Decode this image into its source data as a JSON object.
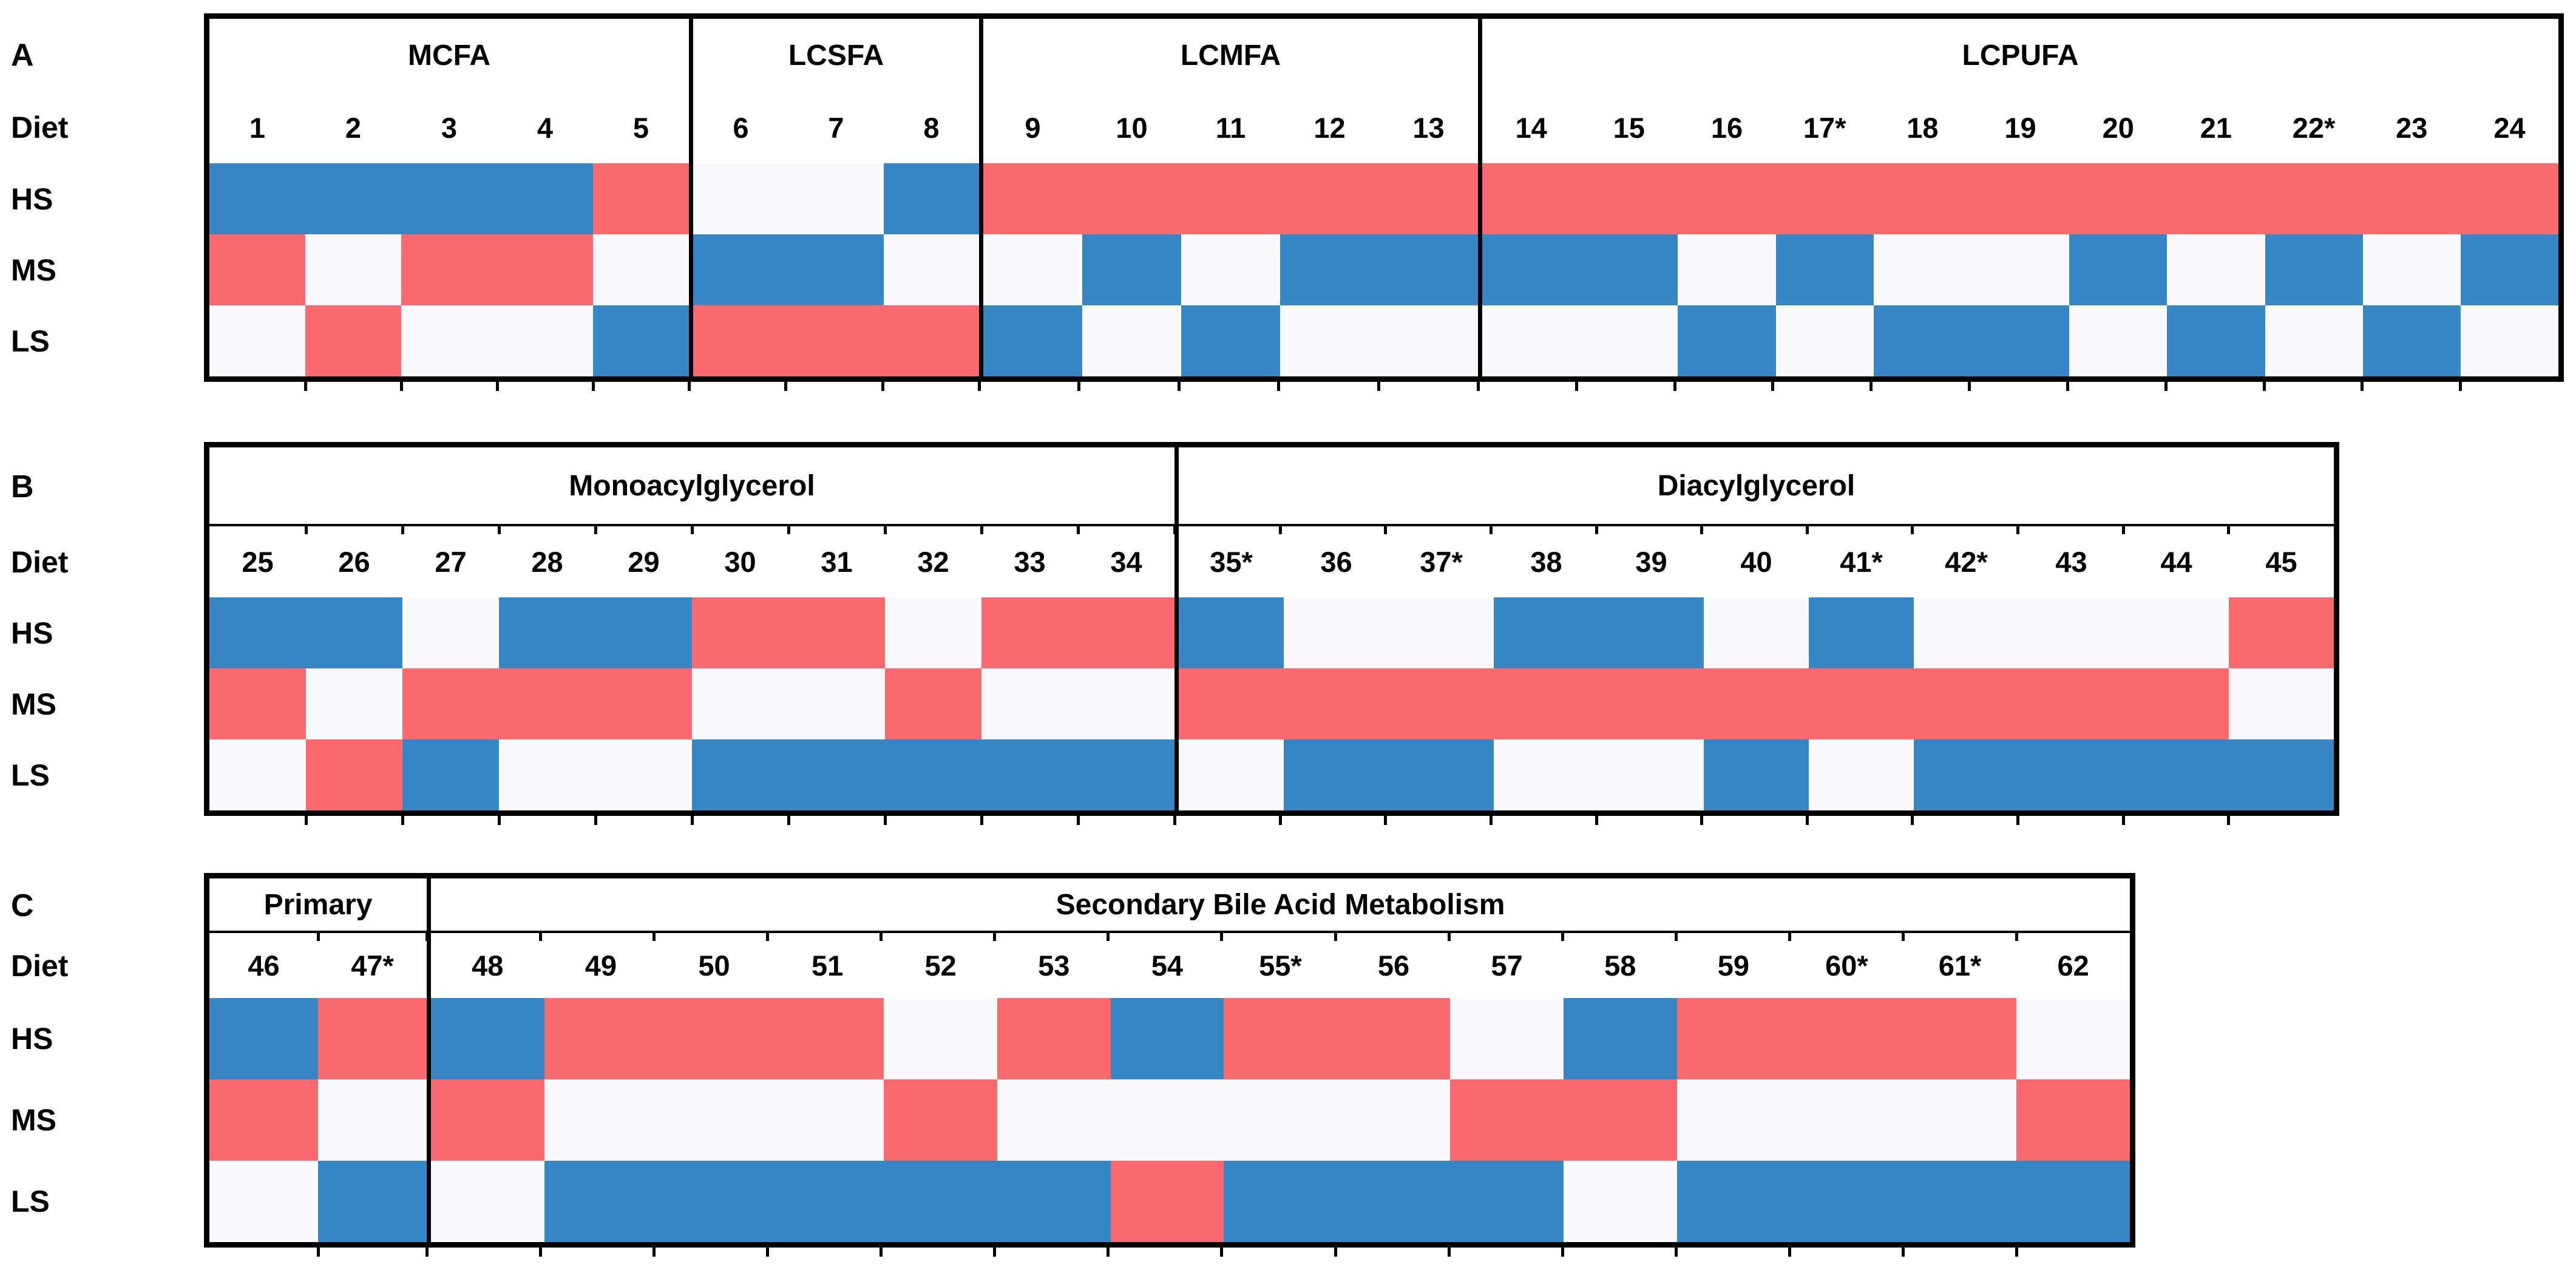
{
  "chart_data": {
    "type": "heatmap",
    "cell_colors": {
      "blue": "#3787C6",
      "red": "#FA696E",
      "white": "#FAF9FD"
    },
    "row_labels": {
      "diet": "Diet",
      "rows": [
        "HS",
        "MS",
        "LS"
      ]
    },
    "panels": [
      {
        "letter": "A",
        "groups": [
          {
            "name": "MCFA",
            "diets": [
              "1",
              "2",
              "3",
              "4",
              "5"
            ],
            "values": {
              "HS": [
                "blue",
                "blue",
                "blue",
                "blue",
                "red"
              ],
              "MS": [
                "red",
                "white",
                "red",
                "red",
                "white"
              ],
              "LS": [
                "white",
                "red",
                "white",
                "white",
                "blue"
              ]
            }
          },
          {
            "name": "LCSFA",
            "diets": [
              "6",
              "7",
              "8"
            ],
            "values": {
              "HS": [
                "white",
                "white",
                "blue"
              ],
              "MS": [
                "blue",
                "blue",
                "white"
              ],
              "LS": [
                "red",
                "red",
                "red"
              ]
            }
          },
          {
            "name": "LCMFA",
            "diets": [
              "9",
              "10",
              "11",
              "12",
              "13"
            ],
            "values": {
              "HS": [
                "red",
                "red",
                "red",
                "red",
                "red"
              ],
              "MS": [
                "white",
                "blue",
                "white",
                "blue",
                "blue"
              ],
              "LS": [
                "blue",
                "white",
                "blue",
                "white",
                "white"
              ]
            }
          },
          {
            "name": "LCPUFA",
            "diets": [
              "14",
              "15",
              "16",
              "17*",
              "18",
              "19",
              "20",
              "21",
              "22*",
              "23",
              "24"
            ],
            "values": {
              "HS": [
                "red",
                "red",
                "red",
                "red",
                "red",
                "red",
                "red",
                "red",
                "red",
                "red",
                "red"
              ],
              "MS": [
                "blue",
                "blue",
                "white",
                "blue",
                "white",
                "white",
                "blue",
                "white",
                "blue",
                "white",
                "blue"
              ],
              "LS": [
                "white",
                "white",
                "blue",
                "white",
                "blue",
                "blue",
                "white",
                "blue",
                "white",
                "blue",
                "white"
              ]
            }
          }
        ]
      },
      {
        "letter": "B",
        "groups": [
          {
            "name": "Monoacylglycerol",
            "diets": [
              "25",
              "26",
              "27",
              "28",
              "29",
              "30",
              "31",
              "32",
              "33",
              "34"
            ],
            "values": {
              "HS": [
                "blue",
                "blue",
                "white",
                "blue",
                "blue",
                "red",
                "red",
                "white",
                "red",
                "red"
              ],
              "MS": [
                "red",
                "white",
                "red",
                "red",
                "red",
                "white",
                "white",
                "red",
                "white",
                "white"
              ],
              "LS": [
                "white",
                "red",
                "blue",
                "white",
                "white",
                "blue",
                "blue",
                "blue",
                "blue",
                "blue"
              ]
            }
          },
          {
            "name": "Diacylglycerol",
            "diets": [
              "35*",
              "36",
              "37*",
              "38",
              "39",
              "40",
              "41*",
              "42*",
              "43",
              "44",
              "45"
            ],
            "values": {
              "HS": [
                "blue",
                "white",
                "white",
                "blue",
                "blue",
                "white",
                "blue",
                "white",
                "white",
                "white",
                "red"
              ],
              "MS": [
                "red",
                "red",
                "red",
                "red",
                "red",
                "red",
                "red",
                "red",
                "red",
                "red",
                "white"
              ],
              "LS": [
                "white",
                "blue",
                "blue",
                "white",
                "white",
                "blue",
                "white",
                "blue",
                "blue",
                "blue",
                "blue"
              ]
            }
          }
        ]
      },
      {
        "letter": "C",
        "groups": [
          {
            "name": "Primary",
            "diets": [
              "46",
              "47*"
            ],
            "values": {
              "HS": [
                "blue",
                "red"
              ],
              "MS": [
                "red",
                "white"
              ],
              "LS": [
                "white",
                "blue"
              ]
            }
          },
          {
            "name": "Secondary Bile Acid Metabolism",
            "diets": [
              "48",
              "49",
              "50",
              "51",
              "52",
              "53",
              "54",
              "55*",
              "56",
              "57",
              "58",
              "59",
              "60*",
              "61*",
              "62"
            ],
            "values": {
              "HS": [
                "blue",
                "red",
                "red",
                "red",
                "white",
                "red",
                "blue",
                "red",
                "red",
                "white",
                "blue",
                "red",
                "red",
                "red",
                "white"
              ],
              "MS": [
                "red",
                "white",
                "white",
                "white",
                "red",
                "white",
                "white",
                "white",
                "white",
                "red",
                "red",
                "white",
                "white",
                "white",
                "red"
              ],
              "LS": [
                "white",
                "blue",
                "blue",
                "blue",
                "blue",
                "blue",
                "red",
                "blue",
                "blue",
                "blue",
                "white",
                "blue",
                "blue",
                "blue",
                "blue"
              ]
            }
          }
        ]
      }
    ]
  }
}
